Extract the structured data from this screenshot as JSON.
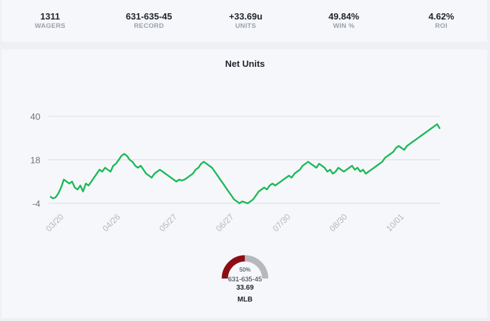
{
  "stats": [
    {
      "value": "1311",
      "label": "WAGERS"
    },
    {
      "value": "631-635-45",
      "label": "RECORD"
    },
    {
      "value": "+33.69u",
      "label": "UNITS"
    },
    {
      "value": "49.84%",
      "label": "WIN %"
    },
    {
      "value": "4.62%",
      "label": "ROI"
    }
  ],
  "chart_title": "Net Units",
  "chart_data": {
    "type": "line",
    "title": "Net Units",
    "y_ticks": [
      40,
      18,
      -4
    ],
    "ylim": [
      -4,
      40
    ],
    "x_ticks": [
      "03/20",
      "04/26",
      "05/27",
      "06/27",
      "07/30",
      "08/30",
      "10/01"
    ],
    "series": [
      {
        "values": [
          -0.5,
          -1.5,
          -1,
          1,
          4,
          8,
          7,
          6,
          7,
          4,
          3,
          5,
          2,
          6,
          5,
          7,
          9,
          11,
          13,
          12,
          14,
          13,
          12,
          15,
          16,
          18,
          20,
          21,
          20,
          18,
          17,
          15,
          14,
          15,
          13,
          11,
          10,
          9,
          11,
          12,
          13,
          12,
          11,
          10,
          9,
          8,
          7,
          8,
          7.5,
          8,
          9,
          10,
          11,
          13,
          14,
          16,
          17,
          16,
          15,
          14,
          12,
          10,
          8,
          6,
          4,
          2,
          0,
          -2,
          -3,
          -4,
          -3,
          -3.5,
          -4,
          -3,
          -2,
          0,
          2,
          3,
          4,
          3,
          5,
          6,
          5,
          6,
          7,
          8,
          9,
          10,
          9,
          11,
          12,
          13,
          15,
          16,
          17,
          16,
          15,
          14,
          16,
          15,
          14,
          12,
          13,
          11,
          12,
          14,
          13,
          12,
          13,
          14,
          15,
          13,
          14,
          12,
          13,
          11,
          12,
          13,
          14,
          15,
          16,
          17,
          19,
          20,
          21,
          22,
          24,
          25,
          24,
          23,
          25,
          26,
          27,
          28,
          29,
          30,
          31,
          32,
          33,
          34,
          35,
          36,
          33.7
        ]
      }
    ]
  },
  "gauge": {
    "percent_label": "50%",
    "record": "631-635-45",
    "units": "33.69",
    "sport": "MLB",
    "win_fraction": 0.4984,
    "win_color": "#8b0e14",
    "loss_color": "#b7b8bd"
  },
  "colors": {
    "line": "#1bb955"
  }
}
